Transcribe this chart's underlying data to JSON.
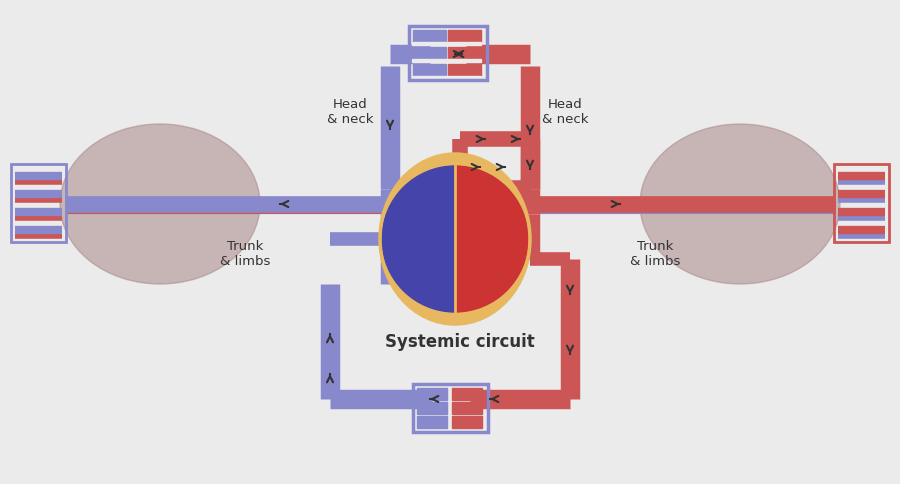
{
  "bg_color": "#ebebeb",
  "blue_color": "#8888cc",
  "red_color": "#cc5555",
  "heart_outline": "#e8b860",
  "heart_blue": "#4444aa",
  "heart_red": "#cc3333",
  "body_brown": "#aa8888",
  "arrow_color": "#333333",
  "text_color": "#333333",
  "title": "Systemic circuit",
  "label_head_neck": "Head\n& neck",
  "label_trunk_limbs": "Trunk\n& limbs",
  "lw_main": 14,
  "lw_arm": 12,
  "lw_thin": 8
}
